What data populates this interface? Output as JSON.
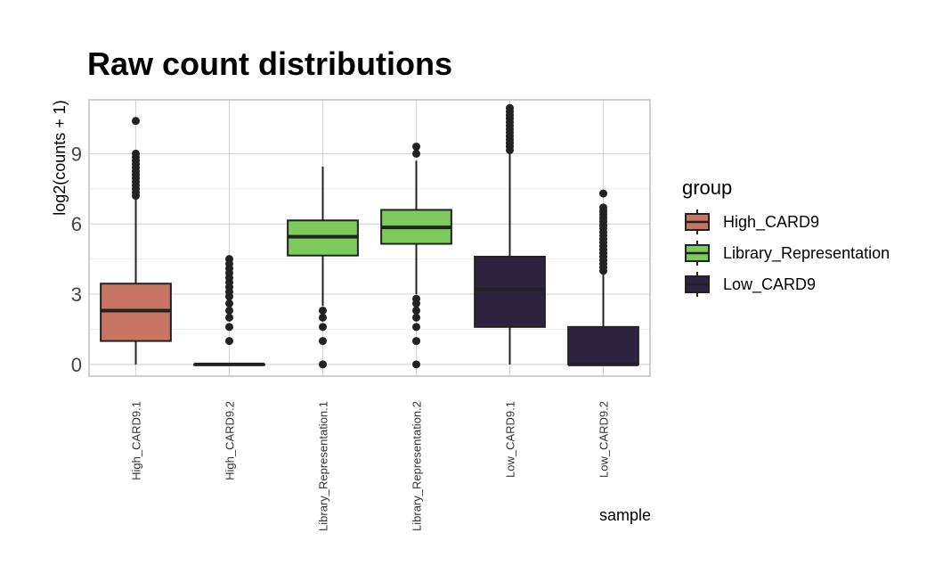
{
  "chart_data": {
    "type": "boxplot",
    "title": "Raw count distributions",
    "xlabel": "sample",
    "ylabel": "log2(counts + 1)",
    "ylim": [
      -0.5,
      11.3
    ],
    "yticks": [
      0,
      3,
      6,
      9
    ],
    "ytick_labels": [
      "0",
      "3",
      "6",
      "9"
    ],
    "grid": true,
    "legend": {
      "title": "group",
      "placement": "right",
      "entries": [
        {
          "label": "High_CARD9",
          "color": "#c87563"
        },
        {
          "label": "Library_Representation",
          "color": "#7ecb5d"
        },
        {
          "label": "Low_CARD9",
          "color": "#2e2241"
        }
      ]
    },
    "categories": [
      "High_CARD9.1",
      "High_CARD9.2",
      "Library_Representation.1",
      "Library_Representation.2",
      "Low_CARD9.1",
      "Low_CARD9.2"
    ],
    "boxes": [
      {
        "sample": "High_CARD9.1",
        "group": "High_CARD9",
        "min": 0,
        "q1": 1.0,
        "median": 2.3,
        "q3": 3.45,
        "max": 7.1,
        "outliers": [
          7.2,
          7.35,
          7.5,
          7.65,
          7.8,
          7.95,
          8.1,
          8.25,
          8.4,
          8.55,
          8.7,
          8.85,
          9.0,
          10.4
        ]
      },
      {
        "sample": "High_CARD9.2",
        "group": "High_CARD9",
        "min": 0,
        "q1": 0,
        "median": 0,
        "q3": 0,
        "max": 0,
        "outliers": [
          1.0,
          1.6,
          2.0,
          2.3,
          2.6,
          2.9,
          3.1,
          3.3,
          3.5,
          3.7,
          3.9,
          4.1,
          4.3,
          4.5
        ]
      },
      {
        "sample": "Library_Representation.1",
        "group": "Library_Representation",
        "min": 2.5,
        "q1": 4.65,
        "median": 5.45,
        "q3": 6.15,
        "max": 8.45,
        "outliers": [
          0,
          1.0,
          1.6,
          2.0,
          2.3
        ]
      },
      {
        "sample": "Library_Representation.2",
        "group": "Library_Representation",
        "min": 3.0,
        "q1": 5.15,
        "median": 5.85,
        "q3": 6.6,
        "max": 8.7,
        "outliers": [
          0,
          1.0,
          1.6,
          2.0,
          2.3,
          2.6,
          2.8,
          9.0,
          9.3
        ]
      },
      {
        "sample": "Low_CARD9.1",
        "group": "Low_CARD9",
        "min": 0,
        "q1": 1.6,
        "median": 3.2,
        "q3": 4.6,
        "max": 9.0,
        "outliers": [
          9.15,
          9.3,
          9.45,
          9.6,
          9.75,
          9.9,
          10.05,
          10.2,
          10.35,
          10.5,
          10.65,
          10.8,
          10.95
        ]
      },
      {
        "sample": "Low_CARD9.2",
        "group": "Low_CARD9",
        "min": 0,
        "q1": 0,
        "median": 0,
        "q3": 1.6,
        "max": 3.9,
        "outliers": [
          4.0,
          4.15,
          4.3,
          4.45,
          4.6,
          4.75,
          4.9,
          5.05,
          5.2,
          5.35,
          5.5,
          5.65,
          5.8,
          5.95,
          6.1,
          6.25,
          6.4,
          6.55,
          6.7,
          7.3
        ]
      }
    ]
  }
}
